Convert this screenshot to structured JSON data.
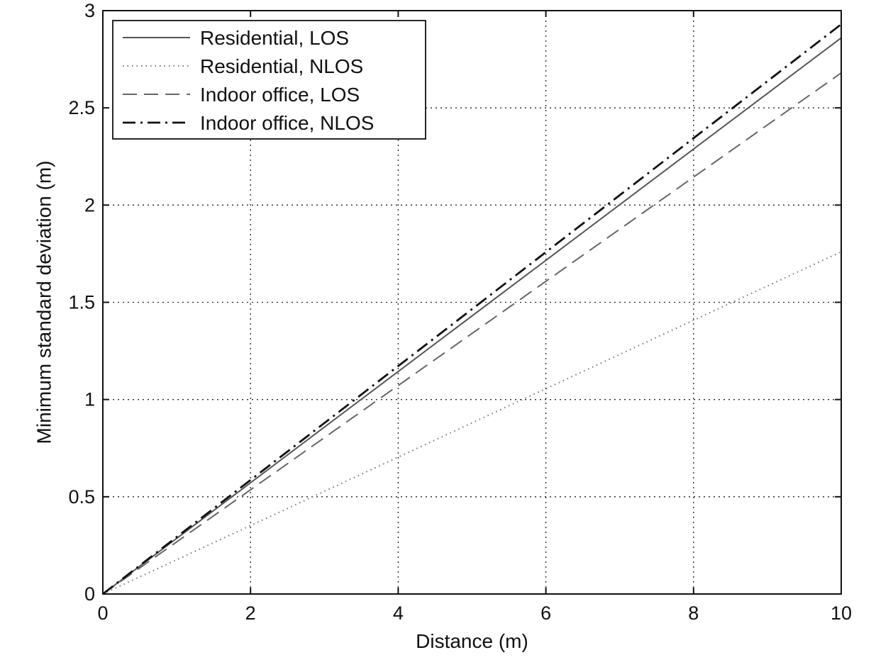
{
  "chart_data": {
    "type": "line",
    "title": "",
    "xlabel": "Distance (m)",
    "ylabel": "Minimum standard deviation (m)",
    "xlim": [
      0,
      10
    ],
    "ylim": [
      0,
      3
    ],
    "x_ticks": [
      "0",
      "2",
      "4",
      "6",
      "8",
      "10"
    ],
    "y_ticks": [
      "0",
      "0.5",
      "1",
      "1.5",
      "2",
      "2.5",
      "3"
    ],
    "grid": true,
    "legend_position": "top-left",
    "x": [
      0,
      10
    ],
    "series": [
      {
        "name": "Residential, LOS",
        "values": [
          0,
          2.86
        ],
        "style": "solid",
        "color": "#555555"
      },
      {
        "name": "Residential, NLOS",
        "values": [
          0,
          1.76
        ],
        "style": "dotted",
        "color": "#777777"
      },
      {
        "name": "Indoor office, LOS",
        "values": [
          0,
          2.68
        ],
        "style": "dashed",
        "color": "#666666"
      },
      {
        "name": "Indoor office, NLOS",
        "values": [
          0,
          2.93
        ],
        "style": "dashdot",
        "color": "#111111"
      }
    ]
  }
}
